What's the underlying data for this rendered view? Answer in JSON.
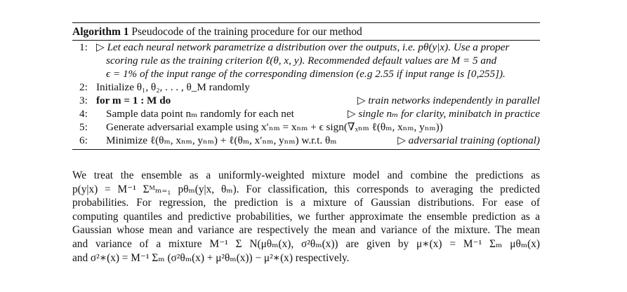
{
  "algorithm": {
    "label": "Algorithm 1",
    "title": "Pseudocode of the training procedure for our method",
    "steps": [
      {
        "num": "1:",
        "text": "▷ Let each neural network parametrize a distribution over the outputs, i.e. pθ(y|x). Use a proper",
        "comment": ""
      },
      {
        "num": "",
        "text": "scoring rule as the training criterion ℓ(θ, x, y). Recommended default values are M = 5 and",
        "comment": ""
      },
      {
        "num": "",
        "text": "ϵ = 1% of the input range of the corresponding dimension (e.g 2.55 if input range is [0,255]).",
        "comment": ""
      },
      {
        "num": "2:",
        "text": "Initialize θ₁, θ₂, . . . , θ_M randomly",
        "comment": ""
      },
      {
        "num": "3:",
        "text": "for m = 1 : M do",
        "comment": "▷ train networks independently in parallel"
      },
      {
        "num": "4:",
        "text": "Sample data point nₘ randomly for each net",
        "comment": "▷ single nₘ for clarity, minibatch in practice"
      },
      {
        "num": "5:",
        "text": "Generate adversarial example using x′ₙₘ = xₙₘ + ϵ sign(∇ₓₙₘ ℓ(θₘ, xₙₘ, yₙₘ))",
        "comment": ""
      },
      {
        "num": "6:",
        "text": "Minimize ℓ(θₘ, xₙₘ, yₙₘ) + ℓ(θₘ, x′ₙₘ, yₙₘ) w.r.t. θₘ",
        "comment": "▷ adversarial training (optional)"
      }
    ]
  },
  "paragraph": [
    "We treat the ensemble as a uniformly-weighted mixture model and combine the predictions as",
    "p(y|x) = M⁻¹ Σᴹₘ₌₁ pθₘ(y|x, θₘ). For classification, this corresponds to averaging the predicted",
    "probabilities. For regression, the prediction is a mixture of Gaussian distributions. For ease of",
    "computing quantiles and predictive probabilities, we further approximate the ensemble prediction as a",
    "Gaussian whose mean and variance are respectively the mean and variance of the mixture. The mean",
    "and variance of a mixture M⁻¹ Σ N(μθₘ(x), σ²θₘ(x)) are given by μ∗(x) = M⁻¹ Σₘ μθₘ(x)",
    "and σ²∗(x) = M⁻¹ Σₘ (σ²θₘ(x) + μ²θₘ(x)) − μ²∗(x) respectively."
  ]
}
